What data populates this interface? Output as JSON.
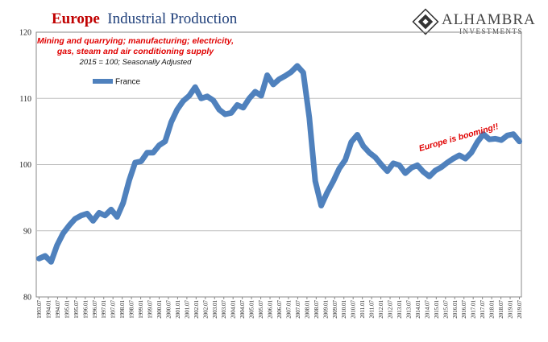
{
  "chart_data": {
    "type": "line",
    "title_part1": "Europe",
    "title_part2": "Industrial Production",
    "subtitle_line1": "Mining and quarrying; manufacturing; electricity,",
    "subtitle_line2": "gas, steam and air conditioning supply",
    "note": "2015 = 100; Seasonally Adjusted",
    "annotation": "Europe is booming!!",
    "ylim": [
      80,
      120
    ],
    "yticks": [
      80,
      90,
      100,
      110,
      120
    ],
    "x_tick_labels": [
      "1993.07",
      "1994.01",
      "1994.07",
      "1995.01",
      "1995.07",
      "1996.01",
      "1996.07",
      "1997.01",
      "1997.07",
      "1998.01",
      "1998.07",
      "1999.01",
      "1999.07",
      "2000.01",
      "2000.07",
      "2001.01",
      "2001.07",
      "2002.01",
      "2002.07",
      "2003.01",
      "2003.07",
      "2004.01",
      "2004.07",
      "2005.01",
      "2005.07",
      "2006.01",
      "2006.07",
      "2007.01",
      "2007.07",
      "2008.01",
      "2008.07",
      "2009.01",
      "2009.07",
      "2010.01",
      "2010.07",
      "2011.01",
      "2011.07",
      "2012.01",
      "2012.07",
      "2013.01",
      "2013.07",
      "2014.01",
      "2014.07",
      "2015.01",
      "2015.07",
      "2016.01",
      "2016.07",
      "2017.01",
      "2017.07",
      "2018.01",
      "2018.07",
      "2019.01",
      "2019.07"
    ],
    "series": [
      {
        "name": "France",
        "color": "#4f81bd",
        "values": [
          85.8,
          86.2,
          85.3,
          87.8,
          89.6,
          90.8,
          91.8,
          92.3,
          92.6,
          91.5,
          92.7,
          92.3,
          93.2,
          92.1,
          94.2,
          97.6,
          100.3,
          100.5,
          101.8,
          101.8,
          102.9,
          103.5,
          106.4,
          108.3,
          109.6,
          110.4,
          111.7,
          110.0,
          110.3,
          109.7,
          108.3,
          107.6,
          107.8,
          109.0,
          108.6,
          110.0,
          111.0,
          110.4,
          113.5,
          112.1,
          112.9,
          113.4,
          114.0,
          114.9,
          113.9,
          107.1,
          97.5,
          93.8,
          95.8,
          97.5,
          99.4,
          100.7,
          103.4,
          104.5,
          102.8,
          101.8,
          101.1,
          100.0,
          99.0,
          100.2,
          99.9,
          98.7,
          99.5,
          99.9,
          98.9,
          98.2,
          99.1,
          99.6,
          100.3,
          100.9,
          101.4,
          100.9,
          101.8,
          103.4,
          104.6,
          103.8,
          103.9,
          103.7,
          104.4,
          104.6,
          103.5
        ]
      }
    ]
  },
  "logo": {
    "name": "ALHAMBRA",
    "sub": "INVESTMENTS"
  }
}
